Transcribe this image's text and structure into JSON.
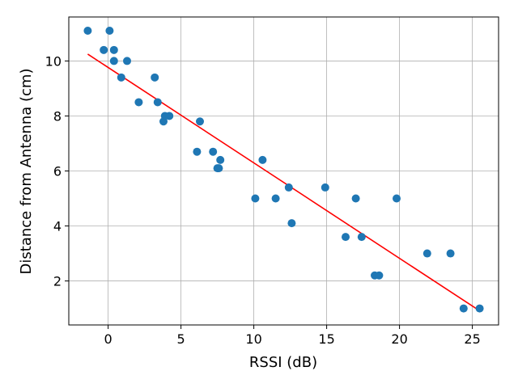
{
  "chart_data": {
    "type": "scatter",
    "title": "",
    "xlabel": "RSSI (dB)",
    "ylabel": "Distance from Antenna (cm)",
    "xlim": [
      -2.7,
      26.8
    ],
    "ylim": [
      0.4,
      11.6
    ],
    "xticks": [
      0,
      5,
      10,
      15,
      20,
      25
    ],
    "yticks": [
      2,
      4,
      6,
      8,
      10
    ],
    "grid": true,
    "legend": "none",
    "colors": {
      "points": "#1f77b4",
      "fit_line": "#ff0000",
      "grid": "#b0b0b0"
    },
    "series": [
      {
        "kind": "points",
        "x": [
          -1.4,
          -0.3,
          0.1,
          0.4,
          0.4,
          0.9,
          1.3,
          2.1,
          3.2,
          3.4,
          3.8,
          3.9,
          4.2,
          6.1,
          6.3,
          7.2,
          7.5,
          7.6,
          7.7,
          10.1,
          10.6,
          11.5,
          12.4,
          12.6,
          14.9,
          16.3,
          17.0,
          17.4,
          18.3,
          18.6,
          19.8,
          21.9,
          23.5,
          24.4,
          25.5
        ],
        "y": [
          11.1,
          10.4,
          11.1,
          10.0,
          10.4,
          9.4,
          10.0,
          8.5,
          9.4,
          8.5,
          7.8,
          8.0,
          8.0,
          6.7,
          7.8,
          6.7,
          6.1,
          6.1,
          6.4,
          5.0,
          6.4,
          5.0,
          5.4,
          4.1,
          5.4,
          3.6,
          5.0,
          3.6,
          2.2,
          2.2,
          5.0,
          3.0,
          3.0,
          1.0,
          1.0
        ]
      },
      {
        "kind": "fit_line",
        "x": [
          -1.4,
          25.4
        ],
        "y": [
          10.25,
          0.95
        ]
      }
    ]
  }
}
